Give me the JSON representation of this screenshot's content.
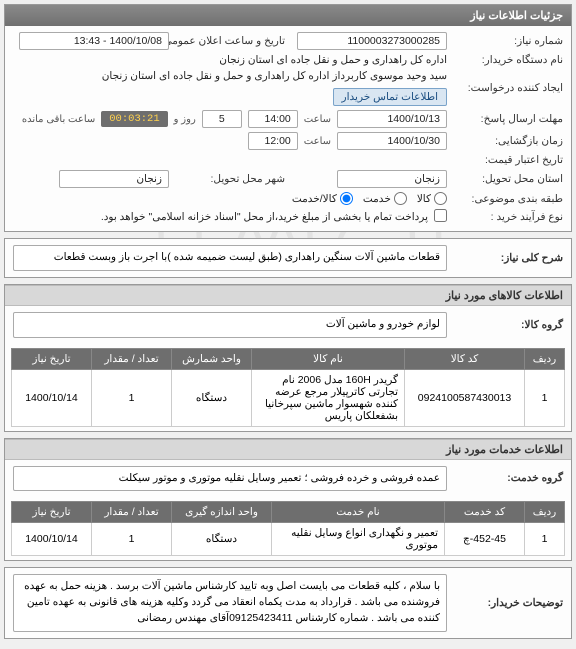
{
  "panel_title": "جزئیات اطلاعات نیاز",
  "info": {
    "need_no_label": "شماره نیاز:",
    "need_no": "1100003273000285",
    "announce_label": "تاریخ و ساعت اعلان عمومی:",
    "announce": "1400/10/08 - 13:43",
    "buyer_org_label": "نام دستگاه خریدار:",
    "buyer_org": "اداره کل راهداری و حمل و نقل جاده ای استان زنجان",
    "requester_label": "ایجاد کننده درخواست:",
    "requester": "سید وحید موسوی کاربرداز اداره کل راهداری و حمل و نقل جاده ای استان زنجان",
    "contact_btn": "اطلاعات تماس خریدار",
    "deadline_label": "مهلت ارسال پاسخ:",
    "deadline_date": "1400/10/13",
    "time_label": "ساعت",
    "deadline_time": "14:00",
    "day_label": "روز و",
    "days_left": "5",
    "countdown": "00:03:21",
    "remaining_label": "ساعت باقی مانده",
    "validity_label": "زمان بازگشایی:",
    "validity_date": "1400/10/30",
    "validity_time": "12:00",
    "credit_date_label": "تاریخ اعتبار قیمت:",
    "province_label": "استان محل تحویل:",
    "province": "زنجان",
    "city_label": "شهر محل تحویل:",
    "city": "زنجان",
    "subject_cat_label": "طبقه بندی موضوعی:",
    "service_radio": "خدمت",
    "goods_radio": "کالا/خدمت",
    "process_label": "نوع فرآیند خرید :",
    "payment_note": "پرداخت تمام یا بخشی از مبلغ خرید،از محل \"اسناد خزانه اسلامی\" خواهد بود.",
    "goods_checkbox": "کالا"
  },
  "need_title": {
    "label": "شرح کلی نیاز:",
    "text": "قطعات ماشین آلات سنگین راهداری (طبق لیست ضمیمه شده )با اجرت باز وبست قطعات"
  },
  "goods": {
    "header": "اطلاعات کالاهای مورد نیاز",
    "group_label": "گروه کالا:",
    "group": "لوازم خودرو و ماشین آلات",
    "cols": {
      "row": "ردیف",
      "code": "کد کالا",
      "name": "نام کالا",
      "unit": "واحد شمارش",
      "qty": "تعداد / مقدار",
      "date": "تاریخ نیاز"
    },
    "rows": [
      {
        "row": "1",
        "code": "0924100587430013",
        "name": "گریدر 160H مدل 2006 نام تجارتی کاترپیلار مرجع عرضه کننده شهسوار ماشین سپرخانیا بشفعلکان پاریس",
        "unit": "دستگاه",
        "qty": "1",
        "date": "1400/10/14"
      }
    ]
  },
  "services": {
    "header": "اطلاعات خدمات مورد نیاز",
    "group_label": "گروه خدمت:",
    "group": "عمده فروشی و خرده فروشی ؛ تعمیر وسایل نقلیه موتوری و موتور سیکلت",
    "cols": {
      "row": "ردیف",
      "code": "کد خدمت",
      "name": "نام خدمت",
      "unit": "واحد اندازه گیری",
      "qty": "تعداد / مقدار",
      "date": "تاریخ نیاز"
    },
    "rows": [
      {
        "row": "1",
        "code": "452-45-چ",
        "name": "تعمیر و نگهداری انواع وسایل نقلیه موتوری",
        "unit": "دستگاه",
        "qty": "1",
        "date": "1400/10/14"
      }
    ]
  },
  "buyer_notes": {
    "label": "توضیحات خریدار:",
    "text": "با سلام ، کلیه قطعات می بایست اصل وبه تایید کارشناس ماشین آلات برسد . هزینه حمل به عهده فروشنده می باشد . قرارداد به مدت یکماه انعقاد می گردد وکلیه هزینه های قانونی به عهده تامین کننده می باشد . شماره کارشناس 09125423411آقای مهندس رمضانی"
  },
  "watermark": "۰۲۱-۸۸۲۶۰۱۳"
}
